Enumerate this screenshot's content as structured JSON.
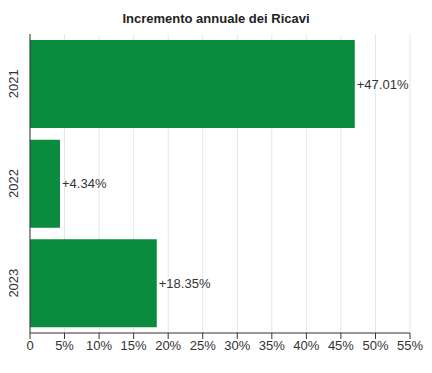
{
  "chart_data": {
    "type": "bar",
    "title": "Incremento annuale dei Ricavi",
    "orientation": "horizontal",
    "categories": [
      "2021",
      "2022",
      "2023"
    ],
    "values": [
      47.01,
      4.34,
      18.35
    ],
    "value_labels": [
      "+47.01%",
      "+4.34%",
      "+18.35%"
    ],
    "data_labels": true,
    "color": "#0a8c3f",
    "xlim": [
      0,
      55
    ],
    "xticks": [
      0,
      {
        "value": 5,
        "label": "5%"
      },
      {
        "value": 10,
        "label": "10%"
      },
      {
        "value": 15,
        "label": "15%"
      },
      {
        "value": 20,
        "label": "20%"
      },
      {
        "value": 25,
        "label": "25%"
      },
      {
        "value": 30,
        "label": "30%"
      },
      {
        "value": 35,
        "label": "35%"
      },
      {
        "value": 40,
        "label": "40%"
      },
      {
        "value": 45,
        "label": "45%"
      },
      {
        "value": 50,
        "label": "50%"
      },
      {
        "value": 55,
        "label": "55%"
      }
    ],
    "grid": true
  }
}
